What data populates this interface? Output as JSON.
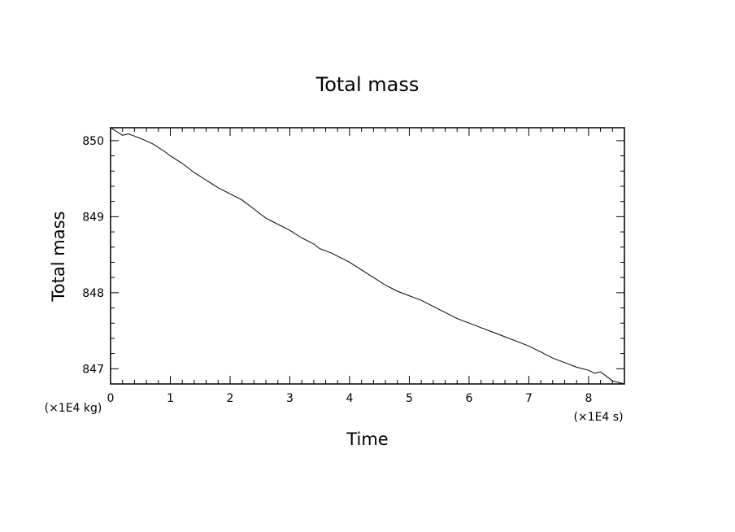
{
  "chart_data": {
    "type": "line",
    "title": "Total mass",
    "xlabel": "Time",
    "ylabel": "Total mass",
    "x_unit": "(×1E4 s)",
    "y_unit": "(×1E4 kg)",
    "xlim": [
      0,
      8.6
    ],
    "ylim": [
      846.8,
      850.17
    ],
    "x_ticks": [
      "0",
      "1",
      "2",
      "3",
      "4",
      "5",
      "6",
      "7",
      "8"
    ],
    "y_ticks": [
      "847",
      "848",
      "849",
      "850"
    ],
    "grid": false,
    "series": [
      {
        "x": [
          0,
          0.2,
          0.3,
          0.4,
          0.5,
          0.7,
          0.9,
          1.0,
          1.2,
          1.4,
          1.6,
          1.8,
          2.0,
          2.2,
          2.4,
          2.5,
          2.6,
          2.7,
          2.8,
          3.0,
          3.2,
          3.4,
          3.5,
          3.7,
          4.0,
          4.2,
          4.4,
          4.6,
          4.8,
          5.0,
          5.2,
          5.4,
          5.6,
          5.8,
          6.0,
          6.2,
          6.4,
          6.6,
          6.8,
          7.0,
          7.2,
          7.4,
          7.6,
          7.8,
          8.0,
          8.1,
          8.2,
          8.3,
          8.4,
          8.5,
          8.6
        ],
        "y": [
          850.17,
          850.07,
          850.09,
          850.06,
          850.03,
          849.96,
          849.86,
          849.8,
          849.7,
          849.58,
          849.48,
          849.38,
          849.3,
          849.22,
          849.1,
          849.04,
          848.98,
          848.94,
          848.9,
          848.82,
          848.72,
          848.64,
          848.58,
          848.52,
          848.4,
          848.3,
          848.2,
          848.1,
          848.02,
          847.96,
          847.9,
          847.82,
          847.74,
          847.66,
          847.6,
          847.54,
          847.48,
          847.42,
          847.36,
          847.3,
          847.22,
          847.14,
          847.08,
          847.02,
          846.98,
          846.94,
          846.96,
          846.9,
          846.84,
          846.82,
          846.8
        ]
      }
    ]
  }
}
